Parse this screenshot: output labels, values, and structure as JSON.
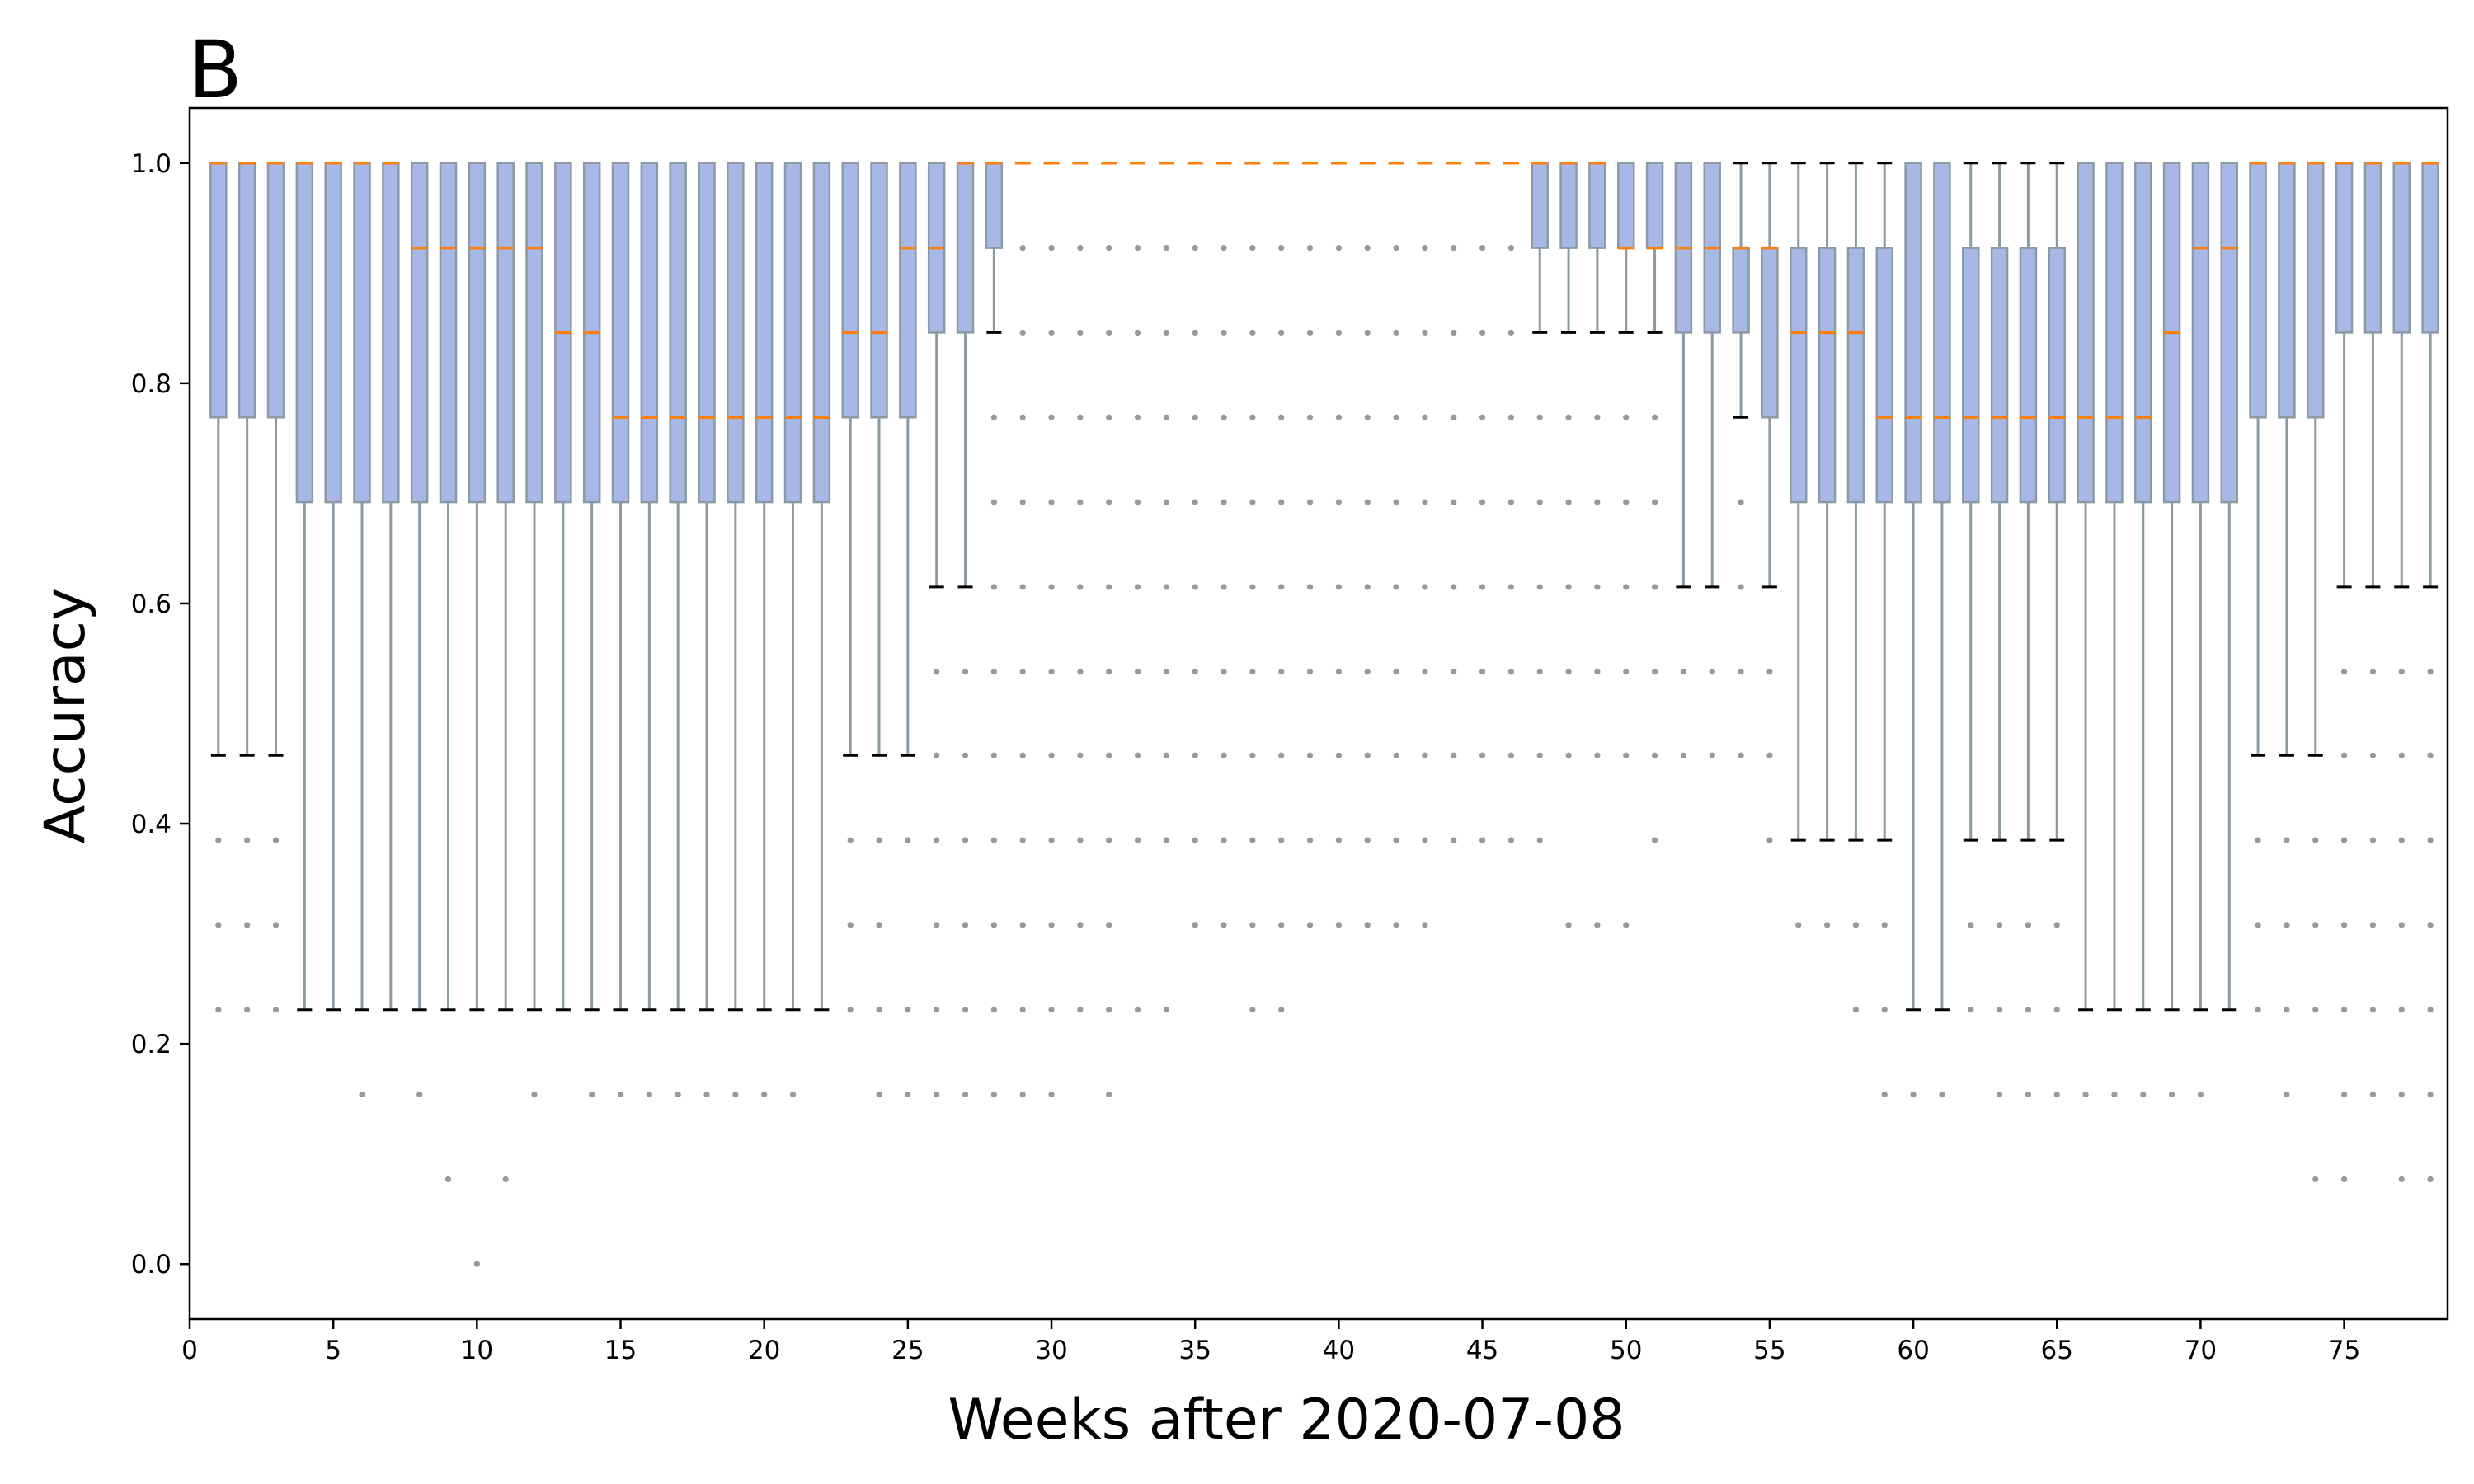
{
  "chart_data": {
    "type": "box",
    "panel_label": "B",
    "xlabel": "Weeks after 2020-07-08",
    "ylabel": "Accuracy",
    "xlim": [
      0,
      78.6
    ],
    "ylim": [
      -0.05,
      1.05
    ],
    "xticks": [
      0,
      5,
      10,
      15,
      20,
      25,
      30,
      35,
      40,
      45,
      50,
      55,
      60,
      65,
      70,
      75
    ],
    "yticks": [
      0.0,
      0.2,
      0.4,
      0.6,
      0.8,
      1.0
    ],
    "ytick_labels": [
      "0.0",
      "0.2",
      "0.4",
      "0.6",
      "0.8",
      "1.0"
    ],
    "colors": {
      "box_fill": "#a8b8e6",
      "box_edge": "#8c9aa3",
      "median": "#ff7f0e",
      "cap": "#000000",
      "flier": "#999999"
    },
    "weeks": [
      {
        "x": 1,
        "q1": 0.769,
        "med": 1,
        "q3": 1,
        "lo": 0.462,
        "hi": 1,
        "out": [
          0.385,
          0.308,
          0.231
        ]
      },
      {
        "x": 2,
        "q1": 0.769,
        "med": 1,
        "q3": 1,
        "lo": 0.462,
        "hi": 1,
        "out": [
          0.385,
          0.308,
          0.231
        ]
      },
      {
        "x": 3,
        "q1": 0.769,
        "med": 1,
        "q3": 1,
        "lo": 0.462,
        "hi": 1,
        "out": [
          0.385,
          0.308,
          0.231
        ]
      },
      {
        "x": 4,
        "q1": 0.692,
        "med": 1,
        "q3": 1,
        "lo": 0.231,
        "hi": 1,
        "out": []
      },
      {
        "x": 5,
        "q1": 0.692,
        "med": 1,
        "q3": 1,
        "lo": 0.231,
        "hi": 1,
        "out": []
      },
      {
        "x": 6,
        "q1": 0.692,
        "med": 1,
        "q3": 1,
        "lo": 0.231,
        "hi": 1,
        "out": [
          0.154
        ]
      },
      {
        "x": 7,
        "q1": 0.692,
        "med": 1,
        "q3": 1,
        "lo": 0.231,
        "hi": 1,
        "out": []
      },
      {
        "x": 8,
        "q1": 0.692,
        "med": 0.923,
        "q3": 1,
        "lo": 0.231,
        "hi": 1,
        "out": [
          0.154
        ]
      },
      {
        "x": 9,
        "q1": 0.692,
        "med": 0.923,
        "q3": 1,
        "lo": 0.231,
        "hi": 1,
        "out": [
          0.077
        ]
      },
      {
        "x": 10,
        "q1": 0.692,
        "med": 0.923,
        "q3": 1,
        "lo": 0.231,
        "hi": 1,
        "out": [
          0.0
        ]
      },
      {
        "x": 11,
        "q1": 0.692,
        "med": 0.923,
        "q3": 1,
        "lo": 0.231,
        "hi": 1,
        "out": [
          0.077
        ]
      },
      {
        "x": 12,
        "q1": 0.692,
        "med": 0.923,
        "q3": 1,
        "lo": 0.231,
        "hi": 1,
        "out": [
          0.154
        ]
      },
      {
        "x": 13,
        "q1": 0.692,
        "med": 0.846,
        "q3": 1,
        "lo": 0.231,
        "hi": 1,
        "out": []
      },
      {
        "x": 14,
        "q1": 0.692,
        "med": 0.846,
        "q3": 1,
        "lo": 0.231,
        "hi": 1,
        "out": [
          0.154
        ]
      },
      {
        "x": 15,
        "q1": 0.692,
        "med": 0.769,
        "q3": 1,
        "lo": 0.231,
        "hi": 1,
        "out": [
          0.154
        ]
      },
      {
        "x": 16,
        "q1": 0.692,
        "med": 0.769,
        "q3": 1,
        "lo": 0.231,
        "hi": 1,
        "out": [
          0.154
        ]
      },
      {
        "x": 17,
        "q1": 0.692,
        "med": 0.769,
        "q3": 1,
        "lo": 0.231,
        "hi": 1,
        "out": [
          0.154
        ]
      },
      {
        "x": 18,
        "q1": 0.692,
        "med": 0.769,
        "q3": 1,
        "lo": 0.231,
        "hi": 1,
        "out": [
          0.154
        ]
      },
      {
        "x": 19,
        "q1": 0.692,
        "med": 0.769,
        "q3": 1,
        "lo": 0.231,
        "hi": 1,
        "out": [
          0.154
        ]
      },
      {
        "x": 20,
        "q1": 0.692,
        "med": 0.769,
        "q3": 1,
        "lo": 0.231,
        "hi": 1,
        "out": [
          0.154
        ]
      },
      {
        "x": 21,
        "q1": 0.692,
        "med": 0.769,
        "q3": 1,
        "lo": 0.231,
        "hi": 1,
        "out": [
          0.154
        ]
      },
      {
        "x": 22,
        "q1": 0.692,
        "med": 0.769,
        "q3": 1,
        "lo": 0.231,
        "hi": 1,
        "out": []
      },
      {
        "x": 23,
        "q1": 0.769,
        "med": 0.846,
        "q3": 1,
        "lo": 0.462,
        "hi": 1,
        "out": [
          0.385,
          0.308,
          0.231
        ]
      },
      {
        "x": 24,
        "q1": 0.769,
        "med": 0.846,
        "q3": 1,
        "lo": 0.462,
        "hi": 1,
        "out": [
          0.385,
          0.308,
          0.231,
          0.154
        ]
      },
      {
        "x": 25,
        "q1": 0.769,
        "med": 0.923,
        "q3": 1,
        "lo": 0.462,
        "hi": 1,
        "out": [
          0.385,
          0.231,
          0.154
        ]
      },
      {
        "x": 26,
        "q1": 0.846,
        "med": 0.923,
        "q3": 1,
        "lo": 0.615,
        "hi": 1,
        "out": [
          0.538,
          0.462,
          0.385,
          0.308,
          0.231,
          0.154
        ]
      },
      {
        "x": 27,
        "q1": 0.846,
        "med": 1,
        "q3": 1,
        "lo": 0.615,
        "hi": 1,
        "out": [
          0.538,
          0.462,
          0.385,
          0.308,
          0.231,
          0.154
        ]
      },
      {
        "x": 28,
        "q1": 0.923,
        "med": 1,
        "q3": 1,
        "lo": 0.846,
        "hi": 1,
        "out": [
          0.769,
          0.692,
          0.615,
          0.538,
          0.462,
          0.385,
          0.308,
          0.231,
          0.154
        ]
      },
      {
        "x": 29,
        "q1": 1,
        "med": 1,
        "q3": 1,
        "lo": 1,
        "hi": 1,
        "out": [
          0.923,
          0.846,
          0.769,
          0.692,
          0.615,
          0.538,
          0.462,
          0.385,
          0.308,
          0.231,
          0.154
        ]
      },
      {
        "x": 30,
        "q1": 1,
        "med": 1,
        "q3": 1,
        "lo": 1,
        "hi": 1,
        "out": [
          0.923,
          0.846,
          0.769,
          0.692,
          0.615,
          0.538,
          0.462,
          0.385,
          0.308,
          0.231,
          0.154
        ]
      },
      {
        "x": 31,
        "q1": 1,
        "med": 1,
        "q3": 1,
        "lo": 1,
        "hi": 1,
        "out": [
          0.923,
          0.846,
          0.769,
          0.692,
          0.615,
          0.538,
          0.462,
          0.385,
          0.308,
          0.231
        ]
      },
      {
        "x": 32,
        "q1": 1,
        "med": 1,
        "q3": 1,
        "lo": 1,
        "hi": 1,
        "out": [
          0.923,
          0.846,
          0.769,
          0.692,
          0.615,
          0.538,
          0.462,
          0.385,
          0.308,
          0.231,
          0.154
        ]
      },
      {
        "x": 33,
        "q1": 1,
        "med": 1,
        "q3": 1,
        "lo": 1,
        "hi": 1,
        "out": [
          0.923,
          0.846,
          0.769,
          0.692,
          0.615,
          0.538,
          0.462,
          0.385,
          0.231
        ]
      },
      {
        "x": 34,
        "q1": 1,
        "med": 1,
        "q3": 1,
        "lo": 1,
        "hi": 1,
        "out": [
          0.923,
          0.846,
          0.769,
          0.692,
          0.615,
          0.538,
          0.462,
          0.385,
          0.231
        ]
      },
      {
        "x": 35,
        "q1": 1,
        "med": 1,
        "q3": 1,
        "lo": 1,
        "hi": 1,
        "out": [
          0.923,
          0.846,
          0.769,
          0.692,
          0.615,
          0.538,
          0.462,
          0.385,
          0.308
        ]
      },
      {
        "x": 36,
        "q1": 1,
        "med": 1,
        "q3": 1,
        "lo": 1,
        "hi": 1,
        "out": [
          0.923,
          0.846,
          0.769,
          0.692,
          0.615,
          0.538,
          0.462,
          0.385,
          0.308
        ]
      },
      {
        "x": 37,
        "q1": 1,
        "med": 1,
        "q3": 1,
        "lo": 1,
        "hi": 1,
        "out": [
          0.923,
          0.846,
          0.769,
          0.692,
          0.615,
          0.538,
          0.462,
          0.385,
          0.308,
          0.231
        ]
      },
      {
        "x": 38,
        "q1": 1,
        "med": 1,
        "q3": 1,
        "lo": 1,
        "hi": 1,
        "out": [
          0.923,
          0.846,
          0.769,
          0.692,
          0.615,
          0.538,
          0.462,
          0.385,
          0.308,
          0.231
        ]
      },
      {
        "x": 39,
        "q1": 1,
        "med": 1,
        "q3": 1,
        "lo": 1,
        "hi": 1,
        "out": [
          0.923,
          0.846,
          0.769,
          0.692,
          0.615,
          0.538,
          0.462,
          0.385,
          0.308
        ]
      },
      {
        "x": 40,
        "q1": 1,
        "med": 1,
        "q3": 1,
        "lo": 1,
        "hi": 1,
        "out": [
          0.923,
          0.846,
          0.769,
          0.692,
          0.615,
          0.538,
          0.462,
          0.385,
          0.308
        ]
      },
      {
        "x": 41,
        "q1": 1,
        "med": 1,
        "q3": 1,
        "lo": 1,
        "hi": 1,
        "out": [
          0.923,
          0.846,
          0.769,
          0.692,
          0.615,
          0.538,
          0.462,
          0.385,
          0.308
        ]
      },
      {
        "x": 42,
        "q1": 1,
        "med": 1,
        "q3": 1,
        "lo": 1,
        "hi": 1,
        "out": [
          0.923,
          0.846,
          0.769,
          0.692,
          0.615,
          0.538,
          0.462,
          0.385,
          0.308
        ]
      },
      {
        "x": 43,
        "q1": 1,
        "med": 1,
        "q3": 1,
        "lo": 1,
        "hi": 1,
        "out": [
          0.923,
          0.846,
          0.769,
          0.692,
          0.615,
          0.538,
          0.462,
          0.385,
          0.308
        ]
      },
      {
        "x": 44,
        "q1": 1,
        "med": 1,
        "q3": 1,
        "lo": 1,
        "hi": 1,
        "out": [
          0.923,
          0.846,
          0.769,
          0.692,
          0.615,
          0.538,
          0.462,
          0.385
        ]
      },
      {
        "x": 45,
        "q1": 1,
        "med": 1,
        "q3": 1,
        "lo": 1,
        "hi": 1,
        "out": [
          0.923,
          0.846,
          0.769,
          0.692,
          0.615,
          0.538,
          0.462,
          0.385
        ]
      },
      {
        "x": 46,
        "q1": 1,
        "med": 1,
        "q3": 1,
        "lo": 1,
        "hi": 1,
        "out": [
          0.923,
          0.846,
          0.769,
          0.692,
          0.615,
          0.538,
          0.462,
          0.385
        ]
      },
      {
        "x": 47,
        "q1": 0.923,
        "med": 1,
        "q3": 1,
        "lo": 0.846,
        "hi": 1,
        "out": [
          0.769,
          0.692,
          0.615,
          0.538,
          0.462,
          0.385
        ]
      },
      {
        "x": 48,
        "q1": 0.923,
        "med": 1,
        "q3": 1,
        "lo": 0.846,
        "hi": 1,
        "out": [
          0.769,
          0.692,
          0.615,
          0.538,
          0.462,
          0.308
        ]
      },
      {
        "x": 49,
        "q1": 0.923,
        "med": 1,
        "q3": 1,
        "lo": 0.846,
        "hi": 1,
        "out": [
          0.769,
          0.692,
          0.615,
          0.538,
          0.462,
          0.308
        ]
      },
      {
        "x": 50,
        "q1": 0.923,
        "med": 0.923,
        "q3": 1,
        "lo": 0.846,
        "hi": 1,
        "out": [
          0.769,
          0.692,
          0.615,
          0.538,
          0.462,
          0.308
        ]
      },
      {
        "x": 51,
        "q1": 0.923,
        "med": 0.923,
        "q3": 1,
        "lo": 0.846,
        "hi": 1,
        "out": [
          0.769,
          0.692,
          0.615,
          0.538,
          0.462,
          0.385
        ]
      },
      {
        "x": 52,
        "q1": 0.846,
        "med": 0.923,
        "q3": 1,
        "lo": 0.615,
        "hi": 1,
        "out": [
          0.538,
          0.462
        ]
      },
      {
        "x": 53,
        "q1": 0.846,
        "med": 0.923,
        "q3": 1,
        "lo": 0.615,
        "hi": 1,
        "out": [
          0.538,
          0.462
        ]
      },
      {
        "x": 54,
        "q1": 0.846,
        "med": 0.923,
        "q3": 0.923,
        "lo": 0.769,
        "hi": 1,
        "out": [
          0.692,
          0.615,
          0.538,
          0.462
        ]
      },
      {
        "x": 55,
        "q1": 0.769,
        "med": 0.923,
        "q3": 0.923,
        "lo": 0.615,
        "hi": 1,
        "out": [
          0.538,
          0.462,
          0.385
        ]
      },
      {
        "x": 56,
        "q1": 0.692,
        "med": 0.846,
        "q3": 0.923,
        "lo": 0.385,
        "hi": 1,
        "out": [
          0.308
        ]
      },
      {
        "x": 57,
        "q1": 0.692,
        "med": 0.846,
        "q3": 0.923,
        "lo": 0.385,
        "hi": 1,
        "out": [
          0.308
        ]
      },
      {
        "x": 58,
        "q1": 0.692,
        "med": 0.846,
        "q3": 0.923,
        "lo": 0.385,
        "hi": 1,
        "out": [
          0.308,
          0.231
        ]
      },
      {
        "x": 59,
        "q1": 0.692,
        "med": 0.769,
        "q3": 0.923,
        "lo": 0.385,
        "hi": 1,
        "out": [
          0.308,
          0.231,
          0.154
        ]
      },
      {
        "x": 60,
        "q1": 0.692,
        "med": 0.769,
        "q3": 1,
        "lo": 0.231,
        "hi": 1,
        "out": [
          0.154
        ]
      },
      {
        "x": 61,
        "q1": 0.692,
        "med": 0.769,
        "q3": 1,
        "lo": 0.231,
        "hi": 1,
        "out": [
          0.154
        ]
      },
      {
        "x": 62,
        "q1": 0.692,
        "med": 0.769,
        "q3": 0.923,
        "lo": 0.385,
        "hi": 1,
        "out": [
          0.308,
          0.231
        ]
      },
      {
        "x": 63,
        "q1": 0.692,
        "med": 0.769,
        "q3": 0.923,
        "lo": 0.385,
        "hi": 1,
        "out": [
          0.308,
          0.231,
          0.154
        ]
      },
      {
        "x": 64,
        "q1": 0.692,
        "med": 0.769,
        "q3": 0.923,
        "lo": 0.385,
        "hi": 1,
        "out": [
          0.308,
          0.231,
          0.154
        ]
      },
      {
        "x": 65,
        "q1": 0.692,
        "med": 0.769,
        "q3": 0.923,
        "lo": 0.385,
        "hi": 1,
        "out": [
          0.308,
          0.231,
          0.154
        ]
      },
      {
        "x": 66,
        "q1": 0.692,
        "med": 0.769,
        "q3": 1,
        "lo": 0.231,
        "hi": 1,
        "out": [
          0.154
        ]
      },
      {
        "x": 67,
        "q1": 0.692,
        "med": 0.769,
        "q3": 1,
        "lo": 0.231,
        "hi": 1,
        "out": [
          0.154
        ]
      },
      {
        "x": 68,
        "q1": 0.692,
        "med": 0.769,
        "q3": 1,
        "lo": 0.231,
        "hi": 1,
        "out": [
          0.154
        ]
      },
      {
        "x": 69,
        "q1": 0.692,
        "med": 0.846,
        "q3": 1,
        "lo": 0.231,
        "hi": 1,
        "out": [
          0.154
        ]
      },
      {
        "x": 70,
        "q1": 0.692,
        "med": 0.923,
        "q3": 1,
        "lo": 0.231,
        "hi": 1,
        "out": [
          0.154
        ]
      },
      {
        "x": 71,
        "q1": 0.692,
        "med": 0.923,
        "q3": 1,
        "lo": 0.231,
        "hi": 1,
        "out": []
      },
      {
        "x": 72,
        "q1": 0.769,
        "med": 1,
        "q3": 1,
        "lo": 0.462,
        "hi": 1,
        "out": [
          0.385,
          0.308,
          0.231
        ]
      },
      {
        "x": 73,
        "q1": 0.769,
        "med": 1,
        "q3": 1,
        "lo": 0.462,
        "hi": 1,
        "out": [
          0.385,
          0.308,
          0.231,
          0.154
        ]
      },
      {
        "x": 74,
        "q1": 0.769,
        "med": 1,
        "q3": 1,
        "lo": 0.462,
        "hi": 1,
        "out": [
          0.385,
          0.308,
          0.231,
          0.077
        ]
      },
      {
        "x": 75,
        "q1": 0.846,
        "med": 1,
        "q3": 1,
        "lo": 0.615,
        "hi": 1,
        "out": [
          0.538,
          0.462,
          0.385,
          0.308,
          0.231,
          0.154,
          0.077
        ]
      },
      {
        "x": 76,
        "q1": 0.846,
        "med": 1,
        "q3": 1,
        "lo": 0.615,
        "hi": 1,
        "out": [
          0.538,
          0.462,
          0.385,
          0.308,
          0.231,
          0.154
        ]
      },
      {
        "x": 77,
        "q1": 0.846,
        "med": 1,
        "q3": 1,
        "lo": 0.615,
        "hi": 1,
        "out": [
          0.538,
          0.462,
          0.385,
          0.308,
          0.231,
          0.154,
          0.077
        ]
      },
      {
        "x": 78,
        "q1": 0.846,
        "med": 1,
        "q3": 1,
        "lo": 0.615,
        "hi": 1,
        "out": [
          0.538,
          0.462,
          0.385,
          0.308,
          0.231,
          0.154,
          0.077
        ]
      }
    ]
  }
}
